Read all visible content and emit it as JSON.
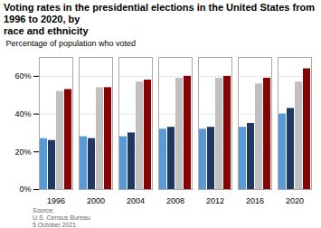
{
  "chart_data": {
    "type": "bar",
    "title": "Voting rates in the presidential elections in the United States from 1996 to 2020, by\nrace and ethnicity",
    "categories": [
      "1996",
      "2000",
      "2004",
      "2008",
      "2012",
      "2016",
      "2020"
    ],
    "series": [
      {
        "color": "#5b9bd5",
        "values": [
          27,
          28,
          28,
          32,
          32,
          33,
          40
        ]
      },
      {
        "color": "#1f3864",
        "values": [
          26,
          27,
          30,
          33,
          33,
          35,
          43
        ]
      },
      {
        "color": "#c0c0c0",
        "values": [
          52,
          54,
          57,
          59,
          59,
          56,
          57
        ]
      },
      {
        "color": "#8b0000",
        "values": [
          53,
          54,
          58,
          60,
          60,
          59,
          64
        ]
      }
    ],
    "ylabel": "Percentage of population who voted",
    "ylim": [
      0,
      70
    ],
    "yticks": [
      {
        "value": 0,
        "label": "0%"
      },
      {
        "value": 20,
        "label": "20%"
      },
      {
        "value": 40,
        "label": "40%"
      },
      {
        "value": 60,
        "label": "60%"
      }
    ],
    "grid": true,
    "annotations": [
      "Source:\nU.S. Census Bureau\n5 October 2021"
    ]
  }
}
